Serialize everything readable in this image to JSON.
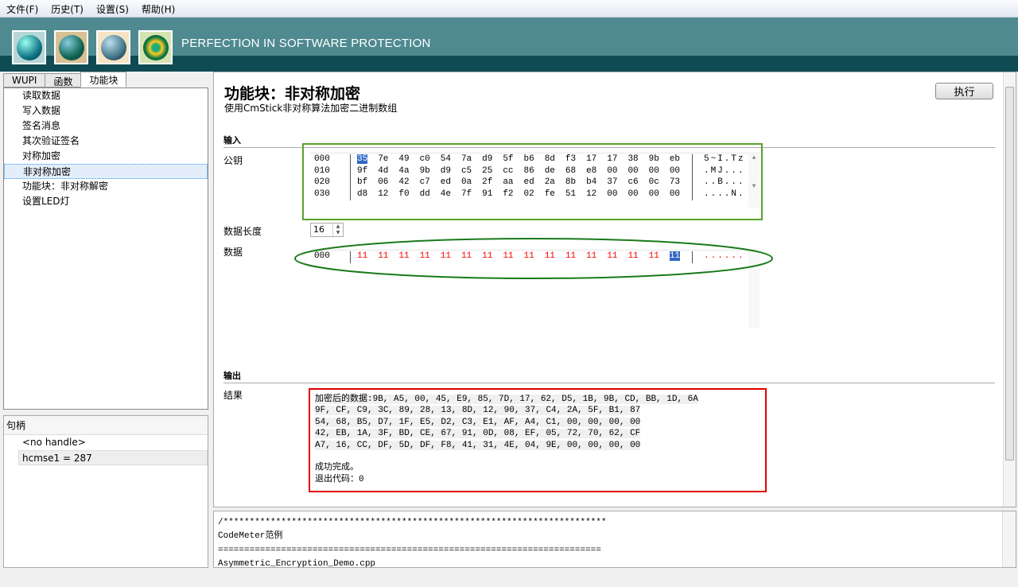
{
  "menu": [
    "文件(F)",
    "历史(T)",
    "设置(S)",
    "帮助(H)"
  ],
  "banner": {
    "slogan": "PERFECTION IN SOFTWARE PROTECTION",
    "toolbar_icons": [
      "codemeter-icon",
      "license-icon",
      "tools-icon",
      "settings-gear-icon"
    ]
  },
  "left": {
    "tabs": [
      "WUPI",
      "函数",
      "功能块"
    ],
    "active_tab": "功能块",
    "functions": [
      "读取数据",
      "写入数据",
      "签名消息",
      "其次验证签名",
      "对称加密",
      "非对称加密",
      "功能块：非对称解密",
      "设置LED灯"
    ],
    "selected_function": "非对称加密",
    "handles_header": "句柄",
    "handles": [
      "<no handle>",
      "hcmse1 = 287"
    ]
  },
  "main": {
    "title": "功能块：非对称加密",
    "subtitle": "使用CmStick非对称算法加密二进制数组",
    "execute": "执行",
    "input_section": "输入",
    "public_key_label": "公钥",
    "public_key": [
      {
        "addr": "000",
        "bytes": [
          "35",
          "7e",
          "49",
          "c0",
          "54",
          "7a",
          "d9",
          "5f",
          "b6",
          "8d",
          "f3",
          "17",
          "17",
          "38",
          "9b",
          "eb"
        ],
        "ascii": "5~I.Tz"
      },
      {
        "addr": "010",
        "bytes": [
          "9f",
          "4d",
          "4a",
          "9b",
          "d9",
          "c5",
          "25",
          "cc",
          "86",
          "de",
          "68",
          "e8",
          "00",
          "00",
          "00",
          "00"
        ],
        "ascii": ".MJ..."
      },
      {
        "addr": "020",
        "bytes": [
          "bf",
          "06",
          "42",
          "c7",
          "ed",
          "0a",
          "2f",
          "aa",
          "ed",
          "2a",
          "8b",
          "b4",
          "37",
          "c6",
          "0c",
          "73"
        ],
        "ascii": "..B..."
      },
      {
        "addr": "030",
        "bytes": [
          "d8",
          "12",
          "f0",
          "dd",
          "4e",
          "7f",
          "91",
          "f2",
          "02",
          "fe",
          "51",
          "12",
          "00",
          "00",
          "00",
          "00"
        ],
        "ascii": "....N."
      }
    ],
    "length_label": "数据长度",
    "length_value": "16",
    "data_label": "数据",
    "data": [
      {
        "addr": "000",
        "bytes": [
          "11",
          "11",
          "11",
          "11",
          "11",
          "11",
          "11",
          "11",
          "11",
          "11",
          "11",
          "11",
          "11",
          "11",
          "11",
          "11"
        ],
        "ascii": "......"
      }
    ],
    "output_section": "输出",
    "result_label": "结果",
    "result_lines": [
      "加密后的数据:9B, A5, 00, 45, E9, 85, 7D, 17, 62, D5, 1B, 9B, CD, BB, 1D, 6A",
      "9F, CF, C9, 3C, 89, 28, 13, 8D, 12, 90, 37, C4, 2A, 5F, B1, 87",
      "54, 68, B5, D7, 1F, E5, D2, C3, E1, AF, A4, C1, 00, 00, 00, 00",
      "42, EB, 1A, 3F, BD, CE, 67, 91, 0D, 08, EF, 05, 72, 70, 62, CF",
      "A7, 16, CC, DF, 5D, DF, F8, 41, 31, 4E, 04, 9E, 00, 00, 00, 00",
      "",
      "成功完成。",
      "退出代码：0"
    ]
  },
  "console": [
    "/*************************************************************************",
    "CodeMeter范例",
    "=========================================================================",
    "Asymmetric_Encryption_Demo.cpp",
    "========================================================================="
  ],
  "colors": {
    "banner": "#4f8a90",
    "banner_dark": "#0f4b53",
    "data_red": "#ff0000",
    "highlight_green": "#5aa02c",
    "ellipse_green": "#1a7a1a",
    "result_border": "#e00000",
    "selection": "#3168c6"
  }
}
